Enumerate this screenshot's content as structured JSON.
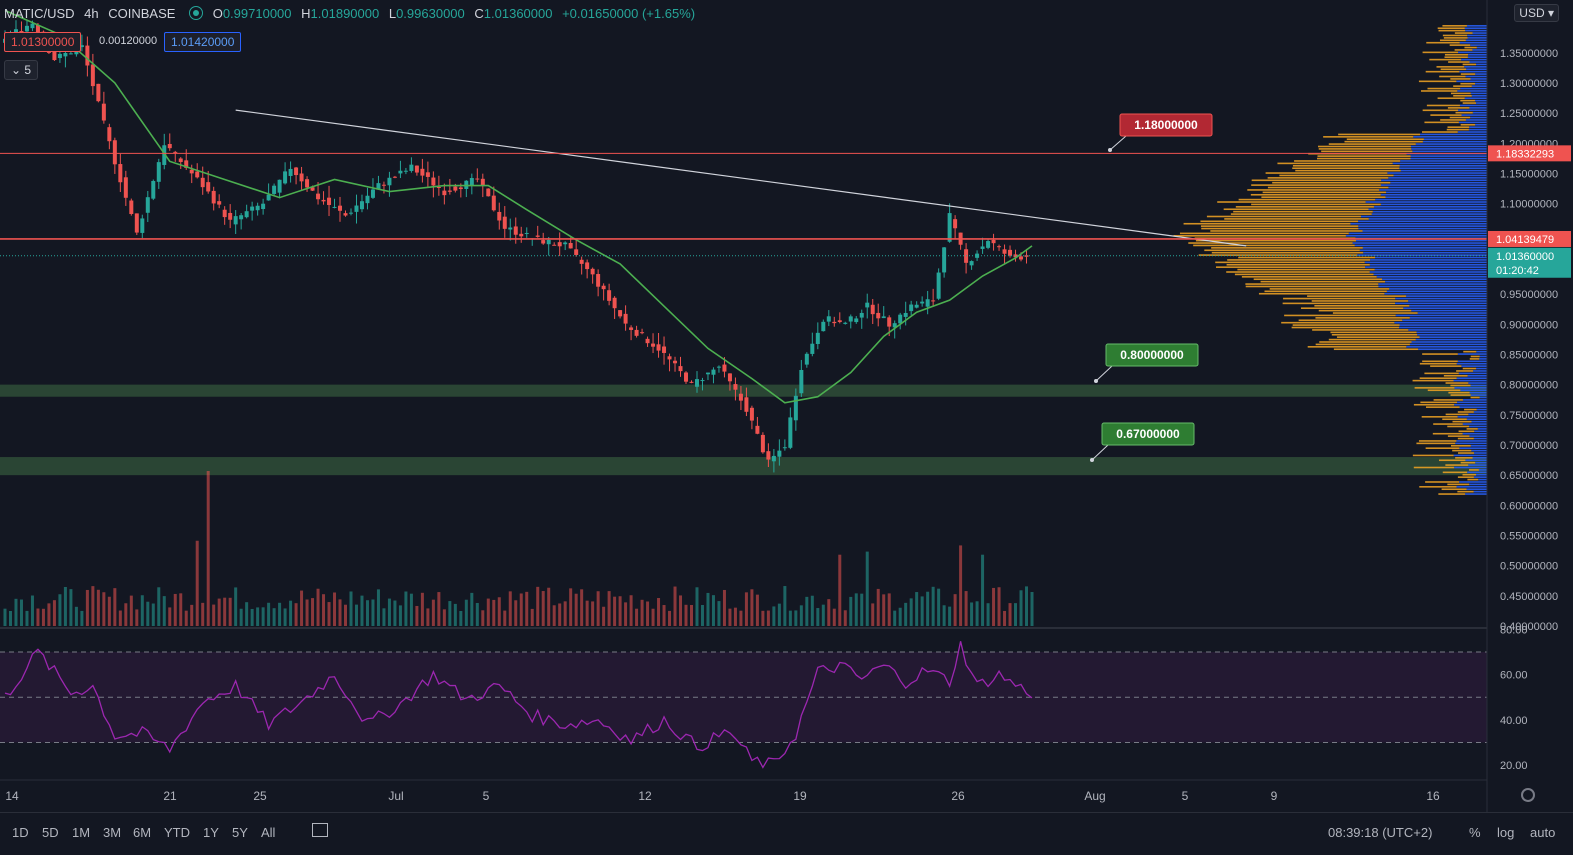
{
  "header": {
    "symbol": "MATIC/USD",
    "interval": "4h",
    "exchange": "COINBASE",
    "o_label": "O",
    "o_value": "0.99710000",
    "h_label": "H",
    "h_value": "1.01890000",
    "l_label": "L",
    "l_value": "0.99630000",
    "c_label": "C",
    "c_value": "1.01360000",
    "change": "+0.01650000 (+1.65%)",
    "sell_price": "1.01300000",
    "spread": "0.00120000",
    "buy_price": "1.01420000",
    "collapsed_count": "5",
    "currency": "USD"
  },
  "bottom_bar": {
    "ranges": [
      "1D",
      "5D",
      "1M",
      "3M",
      "6M",
      "YTD",
      "1Y",
      "5Y",
      "All"
    ],
    "clock": "08:39:18 (UTC+2)",
    "percent": "%",
    "log": "log",
    "auto": "auto"
  },
  "colors": {
    "background": "#131722",
    "up": "#26a69a",
    "down": "#ef5350",
    "ma": "#4caf50",
    "rsi": "#9c27b0",
    "resistance": "#ef5350",
    "support_zone": "#2d4a36",
    "vp_up": "#2962ff",
    "vp_down": "#f5a623"
  },
  "chart_data": [
    {
      "type": "candlestick",
      "title": "MATIC/USD",
      "x_ticks": [
        "14",
        "21",
        "25",
        "Jul",
        "5",
        "12",
        "19",
        "26",
        "Aug",
        "5",
        "9",
        "16"
      ],
      "y_ticks": [
        "1.35000000",
        "1.30000000",
        "1.25000000",
        "1.20000000",
        "1.15000000",
        "1.10000000",
        "0.95000000",
        "0.90000000",
        "0.85000000",
        "0.80000000",
        "0.75000000",
        "0.70000000",
        "0.65000000",
        "0.60000000",
        "0.55000000",
        "0.50000000",
        "0.45000000",
        "0.40000000"
      ],
      "ylim": [
        0.4,
        1.4
      ],
      "price_path": [
        {
          "t": 0,
          "v": 1.37
        },
        {
          "t": 6,
          "v": 1.4
        },
        {
          "t": 10,
          "v": 1.34
        },
        {
          "t": 15,
          "v": 1.36
        },
        {
          "t": 20,
          "v": 1.2
        },
        {
          "t": 25,
          "v": 1.05
        },
        {
          "t": 30,
          "v": 1.2
        },
        {
          "t": 37,
          "v": 1.13
        },
        {
          "t": 42,
          "v": 1.07
        },
        {
          "t": 48,
          "v": 1.1
        },
        {
          "t": 53,
          "v": 1.16
        },
        {
          "t": 58,
          "v": 1.11
        },
        {
          "t": 63,
          "v": 1.08
        },
        {
          "t": 69,
          "v": 1.13
        },
        {
          "t": 75,
          "v": 1.16
        },
        {
          "t": 81,
          "v": 1.12
        },
        {
          "t": 87,
          "v": 1.14
        },
        {
          "t": 92,
          "v": 1.06
        },
        {
          "t": 98,
          "v": 1.04
        },
        {
          "t": 103,
          "v": 1.03
        },
        {
          "t": 108,
          "v": 0.98
        },
        {
          "t": 114,
          "v": 0.9
        },
        {
          "t": 120,
          "v": 0.86
        },
        {
          "t": 126,
          "v": 0.8
        },
        {
          "t": 131,
          "v": 0.83
        },
        {
          "t": 136,
          "v": 0.76
        },
        {
          "t": 140,
          "v": 0.67
        },
        {
          "t": 143,
          "v": 0.7
        },
        {
          "t": 146,
          "v": 0.83
        },
        {
          "t": 150,
          "v": 0.91
        },
        {
          "t": 154,
          "v": 0.9
        },
        {
          "t": 158,
          "v": 0.93
        },
        {
          "t": 162,
          "v": 0.9
        },
        {
          "t": 166,
          "v": 0.93
        },
        {
          "t": 170,
          "v": 0.94
        },
        {
          "t": 173,
          "v": 1.08
        },
        {
          "t": 176,
          "v": 1.0
        },
        {
          "t": 180,
          "v": 1.04
        },
        {
          "t": 184,
          "v": 1.01
        },
        {
          "t": 187,
          "v": 1.0136
        }
      ],
      "moving_average_path": [
        {
          "t": 0,
          "v": 1.42
        },
        {
          "t": 10,
          "v": 1.38
        },
        {
          "t": 20,
          "v": 1.3
        },
        {
          "t": 30,
          "v": 1.17
        },
        {
          "t": 40,
          "v": 1.14
        },
        {
          "t": 50,
          "v": 1.11
        },
        {
          "t": 60,
          "v": 1.14
        },
        {
          "t": 70,
          "v": 1.12
        },
        {
          "t": 80,
          "v": 1.13
        },
        {
          "t": 88,
          "v": 1.13
        },
        {
          "t": 95,
          "v": 1.09
        },
        {
          "t": 104,
          "v": 1.04
        },
        {
          "t": 112,
          "v": 1.0
        },
        {
          "t": 120,
          "v": 0.93
        },
        {
          "t": 128,
          "v": 0.86
        },
        {
          "t": 136,
          "v": 0.81
        },
        {
          "t": 142,
          "v": 0.77
        },
        {
          "t": 148,
          "v": 0.78
        },
        {
          "t": 154,
          "v": 0.82
        },
        {
          "t": 160,
          "v": 0.88
        },
        {
          "t": 166,
          "v": 0.92
        },
        {
          "t": 172,
          "v": 0.94
        },
        {
          "t": 178,
          "v": 0.98
        },
        {
          "t": 184,
          "v": 1.01
        },
        {
          "t": 187,
          "v": 1.03
        }
      ],
      "trendline": {
        "from": {
          "t": 42,
          "v": 1.255
        },
        "to": {
          "t": 226,
          "v": 1.03
        }
      },
      "resistance_levels": [
        {
          "value": 1.18332293,
          "label": "1.18332293",
          "tag": "1.18000000",
          "color": "#ef5350"
        },
        {
          "value": 1.04139479,
          "label": "1.04139479",
          "color": "#ef5350"
        }
      ],
      "support_zones": [
        {
          "low": 0.78,
          "high": 0.8,
          "tag": "0.80000000"
        },
        {
          "low": 0.65,
          "high": 0.68,
          "tag": "0.67000000"
        }
      ],
      "last_price": {
        "value": 1.0136,
        "label": "1.01360000",
        "countdown": "01:20:42"
      },
      "volume_spikes": [
        {
          "t": 37,
          "v": 1.0
        },
        {
          "t": 35,
          "v": 0.55
        },
        {
          "t": 174,
          "v": 0.52
        },
        {
          "t": 157,
          "v": 0.48
        },
        {
          "t": 152,
          "v": 0.46
        },
        {
          "t": 178,
          "v": 0.46
        }
      ]
    },
    {
      "type": "line",
      "title": "RSI",
      "y_ticks": [
        "80.00",
        "60.00",
        "40.00",
        "20.00"
      ],
      "ylim": [
        15,
        80
      ],
      "bands": [
        70,
        50,
        30
      ],
      "values_path": [
        {
          "t": 0,
          "v": 50
        },
        {
          "t": 6,
          "v": 70
        },
        {
          "t": 12,
          "v": 52
        },
        {
          "t": 16,
          "v": 55
        },
        {
          "t": 20,
          "v": 33
        },
        {
          "t": 25,
          "v": 34
        },
        {
          "t": 30,
          "v": 27
        },
        {
          "t": 36,
          "v": 48
        },
        {
          "t": 42,
          "v": 55
        },
        {
          "t": 48,
          "v": 38
        },
        {
          "t": 54,
          "v": 48
        },
        {
          "t": 60,
          "v": 60
        },
        {
          "t": 66,
          "v": 38
        },
        {
          "t": 72,
          "v": 47
        },
        {
          "t": 78,
          "v": 60
        },
        {
          "t": 84,
          "v": 49
        },
        {
          "t": 90,
          "v": 55
        },
        {
          "t": 96,
          "v": 42
        },
        {
          "t": 102,
          "v": 38
        },
        {
          "t": 108,
          "v": 40
        },
        {
          "t": 114,
          "v": 31
        },
        {
          "t": 120,
          "v": 40
        },
        {
          "t": 126,
          "v": 28
        },
        {
          "t": 132,
          "v": 35
        },
        {
          "t": 136,
          "v": 22
        },
        {
          "t": 140,
          "v": 20
        },
        {
          "t": 144,
          "v": 34
        },
        {
          "t": 148,
          "v": 61
        },
        {
          "t": 152,
          "v": 64
        },
        {
          "t": 156,
          "v": 58
        },
        {
          "t": 160,
          "v": 64
        },
        {
          "t": 164,
          "v": 57
        },
        {
          "t": 168,
          "v": 62
        },
        {
          "t": 172,
          "v": 57
        },
        {
          "t": 174,
          "v": 73
        },
        {
          "t": 177,
          "v": 55
        },
        {
          "t": 181,
          "v": 60
        },
        {
          "t": 185,
          "v": 54
        },
        {
          "t": 187,
          "v": 52
        }
      ]
    }
  ]
}
